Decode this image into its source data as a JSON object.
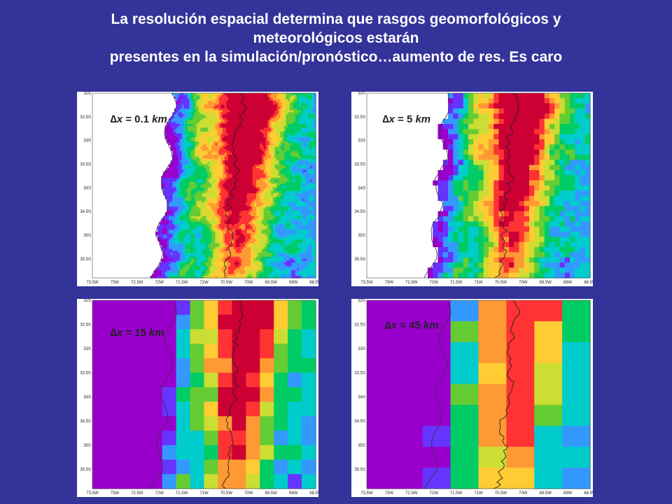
{
  "title": {
    "line1": "La resolución espacial determina que rasgos geomorfológicos y",
    "line2": "meteorológicos estarán",
    "line3": "presentes en la simulación/pronóstico…aumento de res. Es caro"
  },
  "panels": [
    {
      "delta": "∆",
      "var": "x",
      "eq": " = ",
      "value": "0.1",
      "unit": "km"
    },
    {
      "delta": "∆",
      "var": "x",
      "eq": " = ",
      "value": "5",
      "unit": "km"
    },
    {
      "delta": "∆",
      "var": "x",
      "eq": " = ",
      "value": "15",
      "unit": "km"
    },
    {
      "delta": "∆",
      "var": "x",
      "eq": " = ",
      "value": "45",
      "unit": "km"
    }
  ],
  "axes": {
    "lat_ticks": [
      "32S",
      "32.5S",
      "33S",
      "33.5S",
      "34S",
      "34.5S",
      "35S",
      "35.5S"
    ],
    "lon_ticks": [
      "73.5W",
      "73W",
      "72.5W",
      "72W",
      "71.5W",
      "71W",
      "70.5W",
      "70W",
      "69.5W",
      "69W",
      "68.5W"
    ]
  },
  "colors": {
    "background": "#333399",
    "ocean_land_low": "#9900cc",
    "scale": [
      "#9900cc",
      "#6633ff",
      "#3399ff",
      "#00cccc",
      "#00cc66",
      "#66cc33",
      "#ccdd33",
      "#ffcc33",
      "#ff9933",
      "#ff3333",
      "#cc0033"
    ]
  }
}
